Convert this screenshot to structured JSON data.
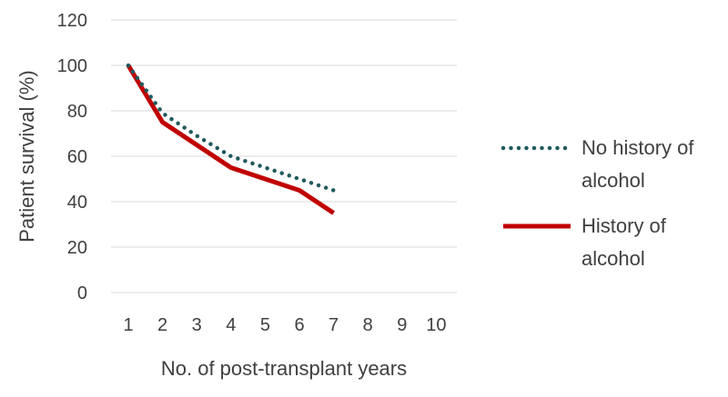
{
  "chart_data": {
    "type": "line",
    "xlabel": "No. of post-transplant years",
    "ylabel": "Patient survival (%)",
    "x": [
      1,
      2,
      3,
      4,
      5,
      6,
      7,
      8,
      9,
      10
    ],
    "x_tick_labels": [
      "1",
      "2",
      "3",
      "4",
      "5",
      "6",
      "7",
      "8",
      "9",
      "10"
    ],
    "ylim": [
      0,
      120
    ],
    "y_ticks": [
      0,
      20,
      40,
      60,
      80,
      100,
      120
    ],
    "y_tick_labels": [
      "0",
      "20",
      "40",
      "60",
      "80",
      "100",
      "120"
    ],
    "grid": "horizontal",
    "legend_position": "right",
    "series": [
      {
        "name": "No history of alcohol",
        "legend_lines": [
          "No history of",
          "alcohol"
        ],
        "x": [
          1,
          2,
          3,
          4,
          5,
          6,
          7
        ],
        "values": [
          100,
          79,
          69,
          60,
          55,
          50,
          45
        ],
        "color": "#1f5a5e",
        "style": "dotted"
      },
      {
        "name": "History of alcohol",
        "legend_lines": [
          "History of",
          "alcohol"
        ],
        "x": [
          1,
          2,
          3,
          4,
          5,
          6,
          7
        ],
        "values": [
          100,
          75,
          65,
          55,
          50,
          45,
          35
        ],
        "color": "#c00000",
        "style": "solid"
      }
    ]
  }
}
